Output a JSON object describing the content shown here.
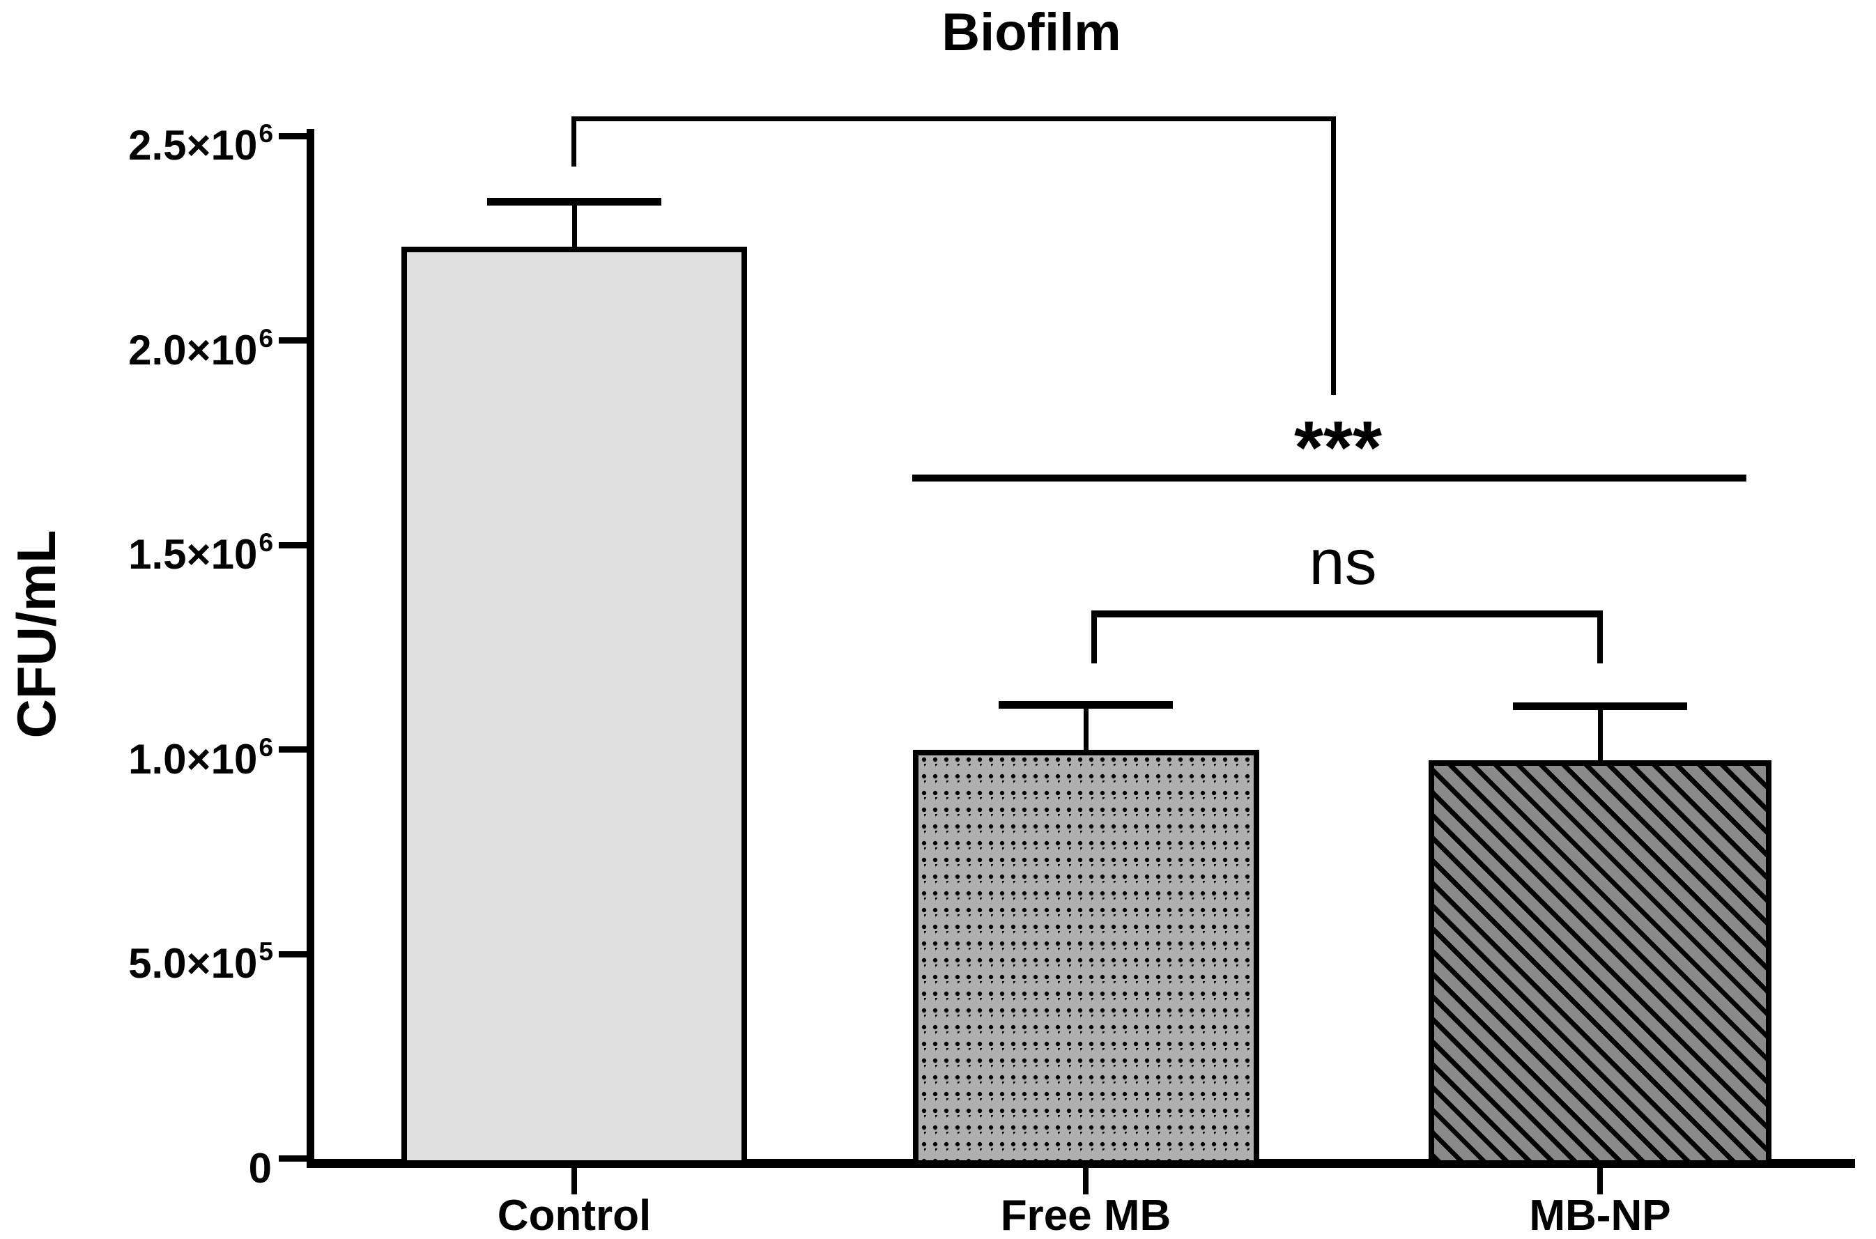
{
  "chart_data": {
    "type": "bar",
    "title": "Biofilm",
    "ylabel": "CFU/mL",
    "xlabel": "",
    "categories": [
      "Control",
      "Free MB",
      "MB-NP"
    ],
    "bars": [
      {
        "category": "Control",
        "value": 2230000,
        "error": 110000,
        "pattern": "solid-light-gray",
        "fill": "#e0e0e0"
      },
      {
        "category": "Free MB",
        "value": 1000000,
        "error": 110000,
        "pattern": "polka-dots",
        "fill": "#afafaf",
        "pattern_color": "#000000"
      },
      {
        "category": "MB-NP",
        "value": 975000,
        "error": 130000,
        "pattern": "diagonal-stripes",
        "fill": "#8a8a8a",
        "pattern_color": "#000000"
      }
    ],
    "error_bars": "upper SD, capped",
    "ylim": [
      0,
      2500000
    ],
    "yticks": [
      {
        "v": 0,
        "mantissa": "0",
        "exp": ""
      },
      {
        "v": 500000,
        "mantissa": "5.0×10",
        "exp": "5"
      },
      {
        "v": 1000000,
        "mantissa": "1.0×10",
        "exp": "6"
      },
      {
        "v": 1500000,
        "mantissa": "1.5×10",
        "exp": "6"
      },
      {
        "v": 2000000,
        "mantissa": "2.0×10",
        "exp": "6"
      },
      {
        "v": 2500000,
        "mantissa": "2.5×10",
        "exp": "6"
      }
    ],
    "grid": false,
    "legend": "none",
    "comparisons": [
      {
        "label": "***",
        "groups": [
          "Control",
          "Free MB + MB-NP"
        ]
      },
      {
        "label": "ns",
        "groups": [
          "Free MB",
          "MB-NP"
        ]
      }
    ],
    "axis_color": "#000000",
    "text_color": "#000000",
    "background": "#ffffff"
  }
}
